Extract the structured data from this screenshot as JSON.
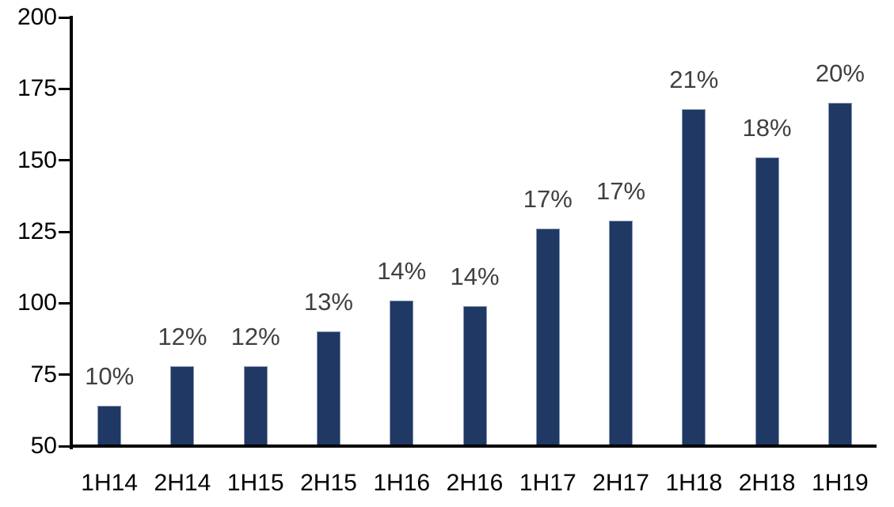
{
  "chart_data": {
    "type": "bar",
    "title": "",
    "xlabel": "",
    "ylabel": "",
    "categories": [
      "1H14",
      "2H14",
      "1H15",
      "2H15",
      "1H16",
      "2H16",
      "1H17",
      "2H17",
      "1H18",
      "2H18",
      "1H19"
    ],
    "values": [
      64,
      78,
      78,
      90,
      101,
      99,
      126,
      129,
      168,
      151,
      170
    ],
    "data_labels": [
      "10%",
      "12%",
      "12%",
      "13%",
      "14%",
      "14%",
      "17%",
      "17%",
      "21%",
      "18%",
      "20%"
    ],
    "ylim": [
      50,
      200
    ],
    "yticks": [
      50,
      75,
      100,
      125,
      150,
      175,
      200
    ],
    "grid": false,
    "legend": false,
    "colors": {
      "bar_fill": "#1F3864",
      "bar_border": "#8796B3",
      "axis": "#000000",
      "tick_label": "#000000",
      "data_label": "#404040",
      "background": "#FFFFFF"
    }
  }
}
